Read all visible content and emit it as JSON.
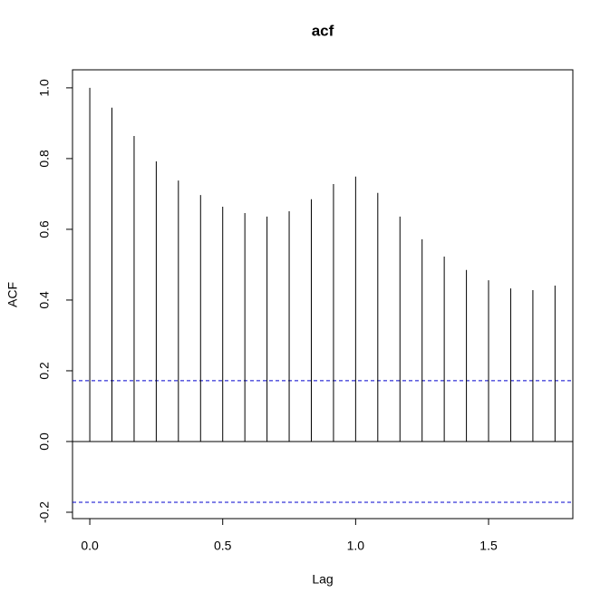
{
  "chart_data": {
    "type": "acf",
    "title": "acf",
    "xlabel": "Lag",
    "ylabel": "ACF",
    "x": [
      0,
      0.0833,
      0.1667,
      0.25,
      0.3333,
      0.4167,
      0.5,
      0.5833,
      0.6667,
      0.75,
      0.8333,
      0.9167,
      1,
      1.0833,
      1.1667,
      1.25,
      1.3333,
      1.4167,
      1.5,
      1.5833,
      1.6667,
      1.75
    ],
    "values": [
      1.0,
      0.944,
      0.864,
      0.792,
      0.738,
      0.697,
      0.664,
      0.646,
      0.636,
      0.651,
      0.685,
      0.728,
      0.749,
      0.703,
      0.636,
      0.572,
      0.523,
      0.485,
      0.456,
      0.433,
      0.428,
      0.441
    ],
    "color": "#000000",
    "ci": [
      0.172,
      -0.172
    ],
    "ci_color": "#0000cc",
    "xlim": [
      -0.065,
      1.817
    ],
    "ylim": [
      -0.218,
      1.051
    ],
    "xticks": [
      {
        "value": 0,
        "label": "0.0"
      },
      {
        "value": 0.5,
        "label": "0.5"
      },
      {
        "value": 1,
        "label": "1.0"
      },
      {
        "value": 1.5,
        "label": "1.5"
      }
    ],
    "yticks": [
      -0.2,
      {
        "value": 0,
        "label": "0.0"
      },
      0.2,
      0.4,
      0.6,
      0.8,
      {
        "value": 1,
        "label": "1.0"
      }
    ]
  }
}
